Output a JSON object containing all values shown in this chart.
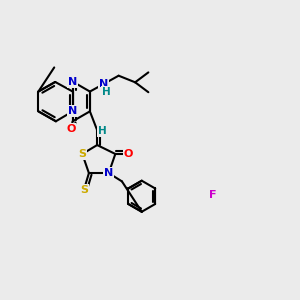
{
  "bg_color": "#ebebeb",
  "atom_colors": {
    "N": "#0000cc",
    "O": "#ff0000",
    "S": "#ccaa00",
    "F": "#cc00cc",
    "H": "#008888",
    "C": "#000000"
  },
  "bond_color": "#000000",
  "bond_lw": 1.5,
  "figsize": [
    3.0,
    3.0
  ],
  "dpi": 100,
  "label_fs": 8.0
}
